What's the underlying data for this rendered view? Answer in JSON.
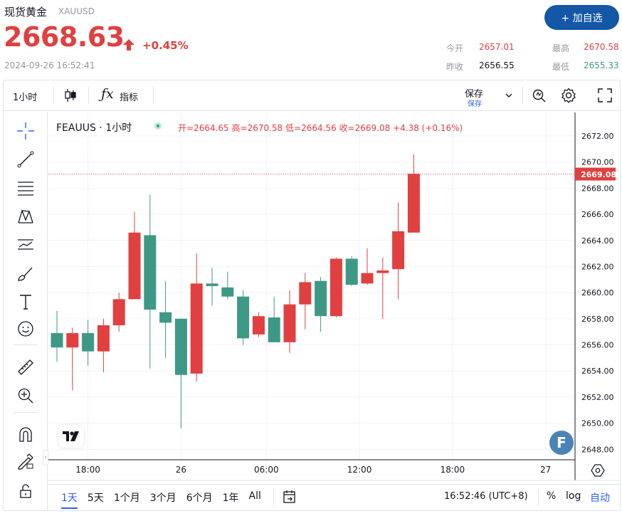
{
  "header": {
    "title": "现货黄金",
    "symbol": "XAUUSD",
    "price": "2668.63",
    "change": "+0.45%",
    "timestamp": "2024-09-26 16:52:41",
    "add_button": "+ 加自选",
    "stats": {
      "open_label": "今开",
      "open_value": "2657.01",
      "high_label": "最高",
      "high_value": "2670.58",
      "prev_close_label": "昨收",
      "prev_close_value": "2656.55",
      "low_label": "最低",
      "low_value": "2655.33"
    }
  },
  "toolbar": {
    "interval": "1小时",
    "indicators": "指标",
    "save": "保存",
    "save_sub": "保存"
  },
  "legend": {
    "symbol": "FEAUUS · 1小时",
    "open": "开=2664.65",
    "high": "高=2670.58",
    "low": "低=2664.56",
    "close": "收=2669.08",
    "change": "+4.38 (+0.16%)"
  },
  "bottom": {
    "ranges": [
      "1天",
      "5天",
      "1个月",
      "3个月",
      "6个月",
      "1年",
      "All"
    ],
    "active_range": "1天",
    "clock": "16:52:46 (UTC+8)",
    "percent": "%",
    "log": "log",
    "auto": "自动"
  },
  "colors": {
    "up": "#e0403f",
    "down": "#3d9985",
    "accent": "#1357a6"
  },
  "chart_data": {
    "type": "candlestick",
    "y_ticks": [
      "2672.00",
      "2670.00",
      "2668.00",
      "2666.00",
      "2664.00",
      "2662.00",
      "2660.00",
      "2658.00",
      "2656.00",
      "2654.00",
      "2652.00",
      "2650.00",
      "2648.00"
    ],
    "ylim": [
      2647.2,
      2673.8
    ],
    "x_ticks": [
      "18:00",
      "26",
      "06:00",
      "12:00",
      "18:00",
      "27"
    ],
    "last_price_label": "2669.08",
    "last_price": 2669.08,
    "candles": [
      {
        "o": 2656.9,
        "h": 2658.6,
        "l": 2654.7,
        "c": 2655.8
      },
      {
        "o": 2655.8,
        "h": 2657.3,
        "l": 2652.5,
        "c": 2656.9
      },
      {
        "o": 2656.9,
        "h": 2657.9,
        "l": 2654.4,
        "c": 2655.5
      },
      {
        "o": 2655.5,
        "h": 2658.0,
        "l": 2653.9,
        "c": 2657.5
      },
      {
        "o": 2657.5,
        "h": 2660.0,
        "l": 2657.0,
        "c": 2659.5
      },
      {
        "o": 2659.5,
        "h": 2666.2,
        "l": 2659.5,
        "c": 2664.6
      },
      {
        "o": 2664.4,
        "h": 2667.5,
        "l": 2654.2,
        "c": 2658.7
      },
      {
        "o": 2658.5,
        "h": 2660.9,
        "l": 2655.0,
        "c": 2657.7
      },
      {
        "o": 2658.0,
        "h": 2658.0,
        "l": 2649.6,
        "c": 2653.7
      },
      {
        "o": 2653.8,
        "h": 2663.0,
        "l": 2653.2,
        "c": 2660.7
      },
      {
        "o": 2660.7,
        "h": 2661.9,
        "l": 2659.0,
        "c": 2660.5
      },
      {
        "o": 2660.4,
        "h": 2661.6,
        "l": 2659.5,
        "c": 2659.7
      },
      {
        "o": 2659.7,
        "h": 2660.2,
        "l": 2656.0,
        "c": 2656.5
      },
      {
        "o": 2656.8,
        "h": 2658.5,
        "l": 2656.6,
        "c": 2658.2
      },
      {
        "o": 2658.1,
        "h": 2659.7,
        "l": 2656.2,
        "c": 2656.2
      },
      {
        "o": 2656.2,
        "h": 2660.2,
        "l": 2655.4,
        "c": 2659.1
      },
      {
        "o": 2659.1,
        "h": 2661.5,
        "l": 2657.2,
        "c": 2660.8
      },
      {
        "o": 2660.9,
        "h": 2661.2,
        "l": 2657.0,
        "c": 2658.2
      },
      {
        "o": 2658.2,
        "h": 2662.7,
        "l": 2658.1,
        "c": 2662.6
      },
      {
        "o": 2662.6,
        "h": 2662.8,
        "l": 2660.5,
        "c": 2660.6
      },
      {
        "o": 2660.7,
        "h": 2663.4,
        "l": 2660.6,
        "c": 2661.5
      },
      {
        "o": 2661.5,
        "h": 2662.7,
        "l": 2658.0,
        "c": 2661.7
      },
      {
        "o": 2661.8,
        "h": 2666.9,
        "l": 2659.5,
        "c": 2664.7
      },
      {
        "o": 2664.6,
        "h": 2670.6,
        "l": 2664.6,
        "c": 2669.1
      }
    ]
  }
}
